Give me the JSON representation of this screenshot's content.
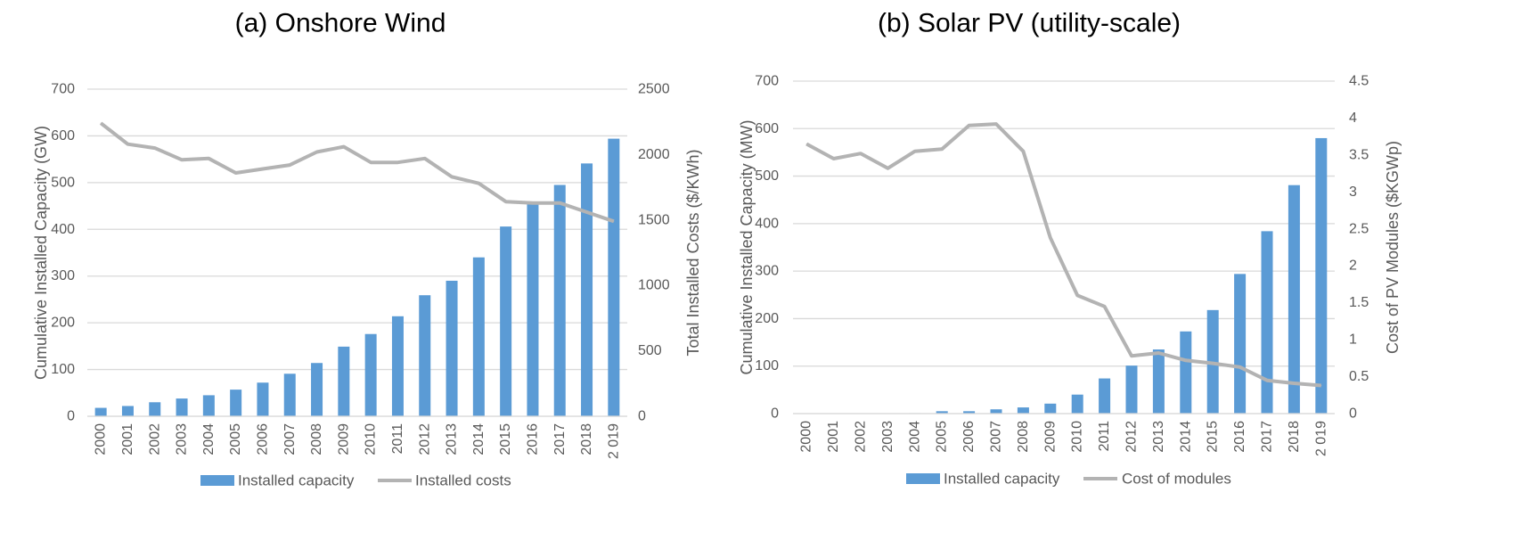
{
  "chart_data": [
    {
      "type": "bar",
      "title": "(a)   Onshore Wind",
      "categories": [
        "2000",
        "2001",
        "2002",
        "2003",
        "2004",
        "2005",
        "2006",
        "2007",
        "2008",
        "2009",
        "2010",
        "2011",
        "2012",
        "2013",
        "2014",
        "2015",
        "2016",
        "2017",
        "2018",
        "2 019"
      ],
      "series": [
        {
          "name": "Installed capacity",
          "type": "bar",
          "axis": "left",
          "color": "#5b9bd5",
          "values": [
            18,
            22,
            30,
            38,
            45,
            57,
            72,
            91,
            114,
            149,
            176,
            214,
            259,
            290,
            340,
            406,
            454,
            495,
            541,
            594
          ]
        },
        {
          "name": "Installed costs",
          "type": "line",
          "axis": "right",
          "color": "#b3b3b3",
          "values": [
            2240,
            2080,
            2050,
            1960,
            1970,
            1860,
            1890,
            1920,
            2020,
            2060,
            1940,
            1940,
            1970,
            1830,
            1780,
            1640,
            1630,
            1630,
            1560,
            1490
          ]
        }
      ],
      "ylabel": "Cumulative Installed Capacity (GW)",
      "ylabel_right": "Total Installed Costs ($/KWh)",
      "ylim": [
        0,
        700
      ],
      "ylim_right": [
        0,
        2500
      ],
      "yticks": [
        "0",
        "100",
        "200",
        "300",
        "400",
        "500",
        "600",
        "700"
      ],
      "yticks_right": [
        "0",
        "500",
        "1000",
        "1500",
        "2000",
        "2500"
      ],
      "legend": [
        "Installed capacity",
        "Installed costs"
      ]
    },
    {
      "type": "bar",
      "title": "(b) Solar PV (utility-scale)",
      "categories": [
        "2000",
        "2001",
        "2002",
        "2003",
        "2004",
        "2005",
        "2006",
        "2007",
        "2008",
        "2009",
        "2010",
        "2011",
        "2012",
        "2013",
        "2014",
        "2015",
        "2016",
        "2017",
        "2018",
        "2 019"
      ],
      "series": [
        {
          "name": "Installed capacity",
          "type": "bar",
          "axis": "left",
          "color": "#5b9bd5",
          "values": [
            0,
            0,
            0,
            0,
            1,
            5,
            5,
            9,
            13,
            21,
            40,
            74,
            101,
            135,
            173,
            218,
            294,
            384,
            481,
            580
          ]
        },
        {
          "name": "Cost of modules",
          "type": "line",
          "axis": "right",
          "color": "#b3b3b3",
          "values": [
            3.65,
            3.45,
            3.52,
            3.32,
            3.55,
            3.58,
            3.9,
            3.92,
            3.55,
            2.38,
            1.6,
            1.45,
            0.78,
            0.82,
            0.72,
            0.68,
            0.63,
            0.45,
            0.41,
            0.38
          ]
        }
      ],
      "ylabel": "Cumulative Installed Capacity (MW)",
      "ylabel_right": "Cost of PV Modules ($KGWp)",
      "ylim": [
        0,
        700
      ],
      "ylim_right": [
        0,
        4.5
      ],
      "yticks": [
        "0",
        "100",
        "200",
        "300",
        "400",
        "500",
        "600",
        "700"
      ],
      "yticks_right": [
        "0",
        "0.5",
        "1",
        "1.5",
        "2",
        "2.5",
        "3",
        "3.5",
        "4",
        "4.5"
      ],
      "legend": [
        "Installed capacity",
        "Cost of modules"
      ]
    }
  ]
}
